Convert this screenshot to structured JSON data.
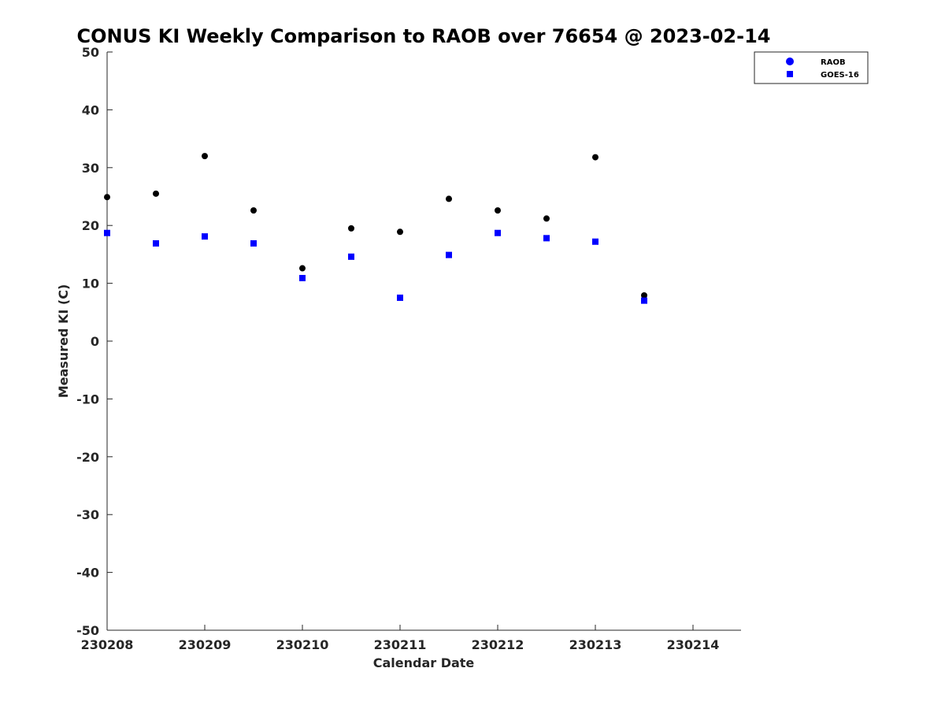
{
  "chart_data": {
    "type": "scatter",
    "title": "CONUS KI Weekly Comparison to RAOB over 76654 @ 2023-02-14",
    "xlabel": "Calendar Date",
    "ylabel": "Measured KI (C)",
    "xlim": [
      230208,
      230214.5
    ],
    "ylim": [
      -50,
      50
    ],
    "xticks": [
      230208,
      230209,
      230210,
      230211,
      230212,
      230213,
      230214
    ],
    "xtick_labels": [
      "230208",
      "230209",
      "230210",
      "230211",
      "230212",
      "230213",
      "230214"
    ],
    "yticks": [
      50,
      40,
      30,
      20,
      10,
      0,
      -10,
      -20,
      -30,
      -40,
      -50
    ],
    "ytick_labels": [
      "50",
      "40",
      "30",
      "20",
      "10",
      "0",
      "-10",
      "-20",
      "-30",
      "-40",
      "-50"
    ],
    "grid": false,
    "legend_position": "top-right",
    "series": [
      {
        "name": "RAOB",
        "marker": "circle",
        "legend_color": "#0000ff",
        "color": "#000000",
        "x": [
          230208,
          230208.5,
          230209,
          230209.5,
          230210,
          230210.5,
          230211,
          230211.5,
          230212,
          230212.5,
          230213,
          230213.5
        ],
        "y": [
          24.9,
          25.5,
          32.0,
          22.6,
          12.6,
          19.5,
          18.9,
          24.6,
          22.6,
          21.2,
          31.8,
          7.9
        ]
      },
      {
        "name": "GOES-16",
        "marker": "square",
        "color": "#0000ff",
        "x": [
          230208,
          230208.5,
          230209,
          230209.5,
          230210,
          230210.5,
          230211,
          230211.5,
          230212,
          230212.5,
          230213,
          230213.5
        ],
        "y": [
          18.7,
          16.9,
          18.1,
          16.9,
          10.9,
          14.6,
          7.5,
          14.9,
          18.7,
          17.8,
          17.2,
          7.0
        ]
      }
    ]
  }
}
